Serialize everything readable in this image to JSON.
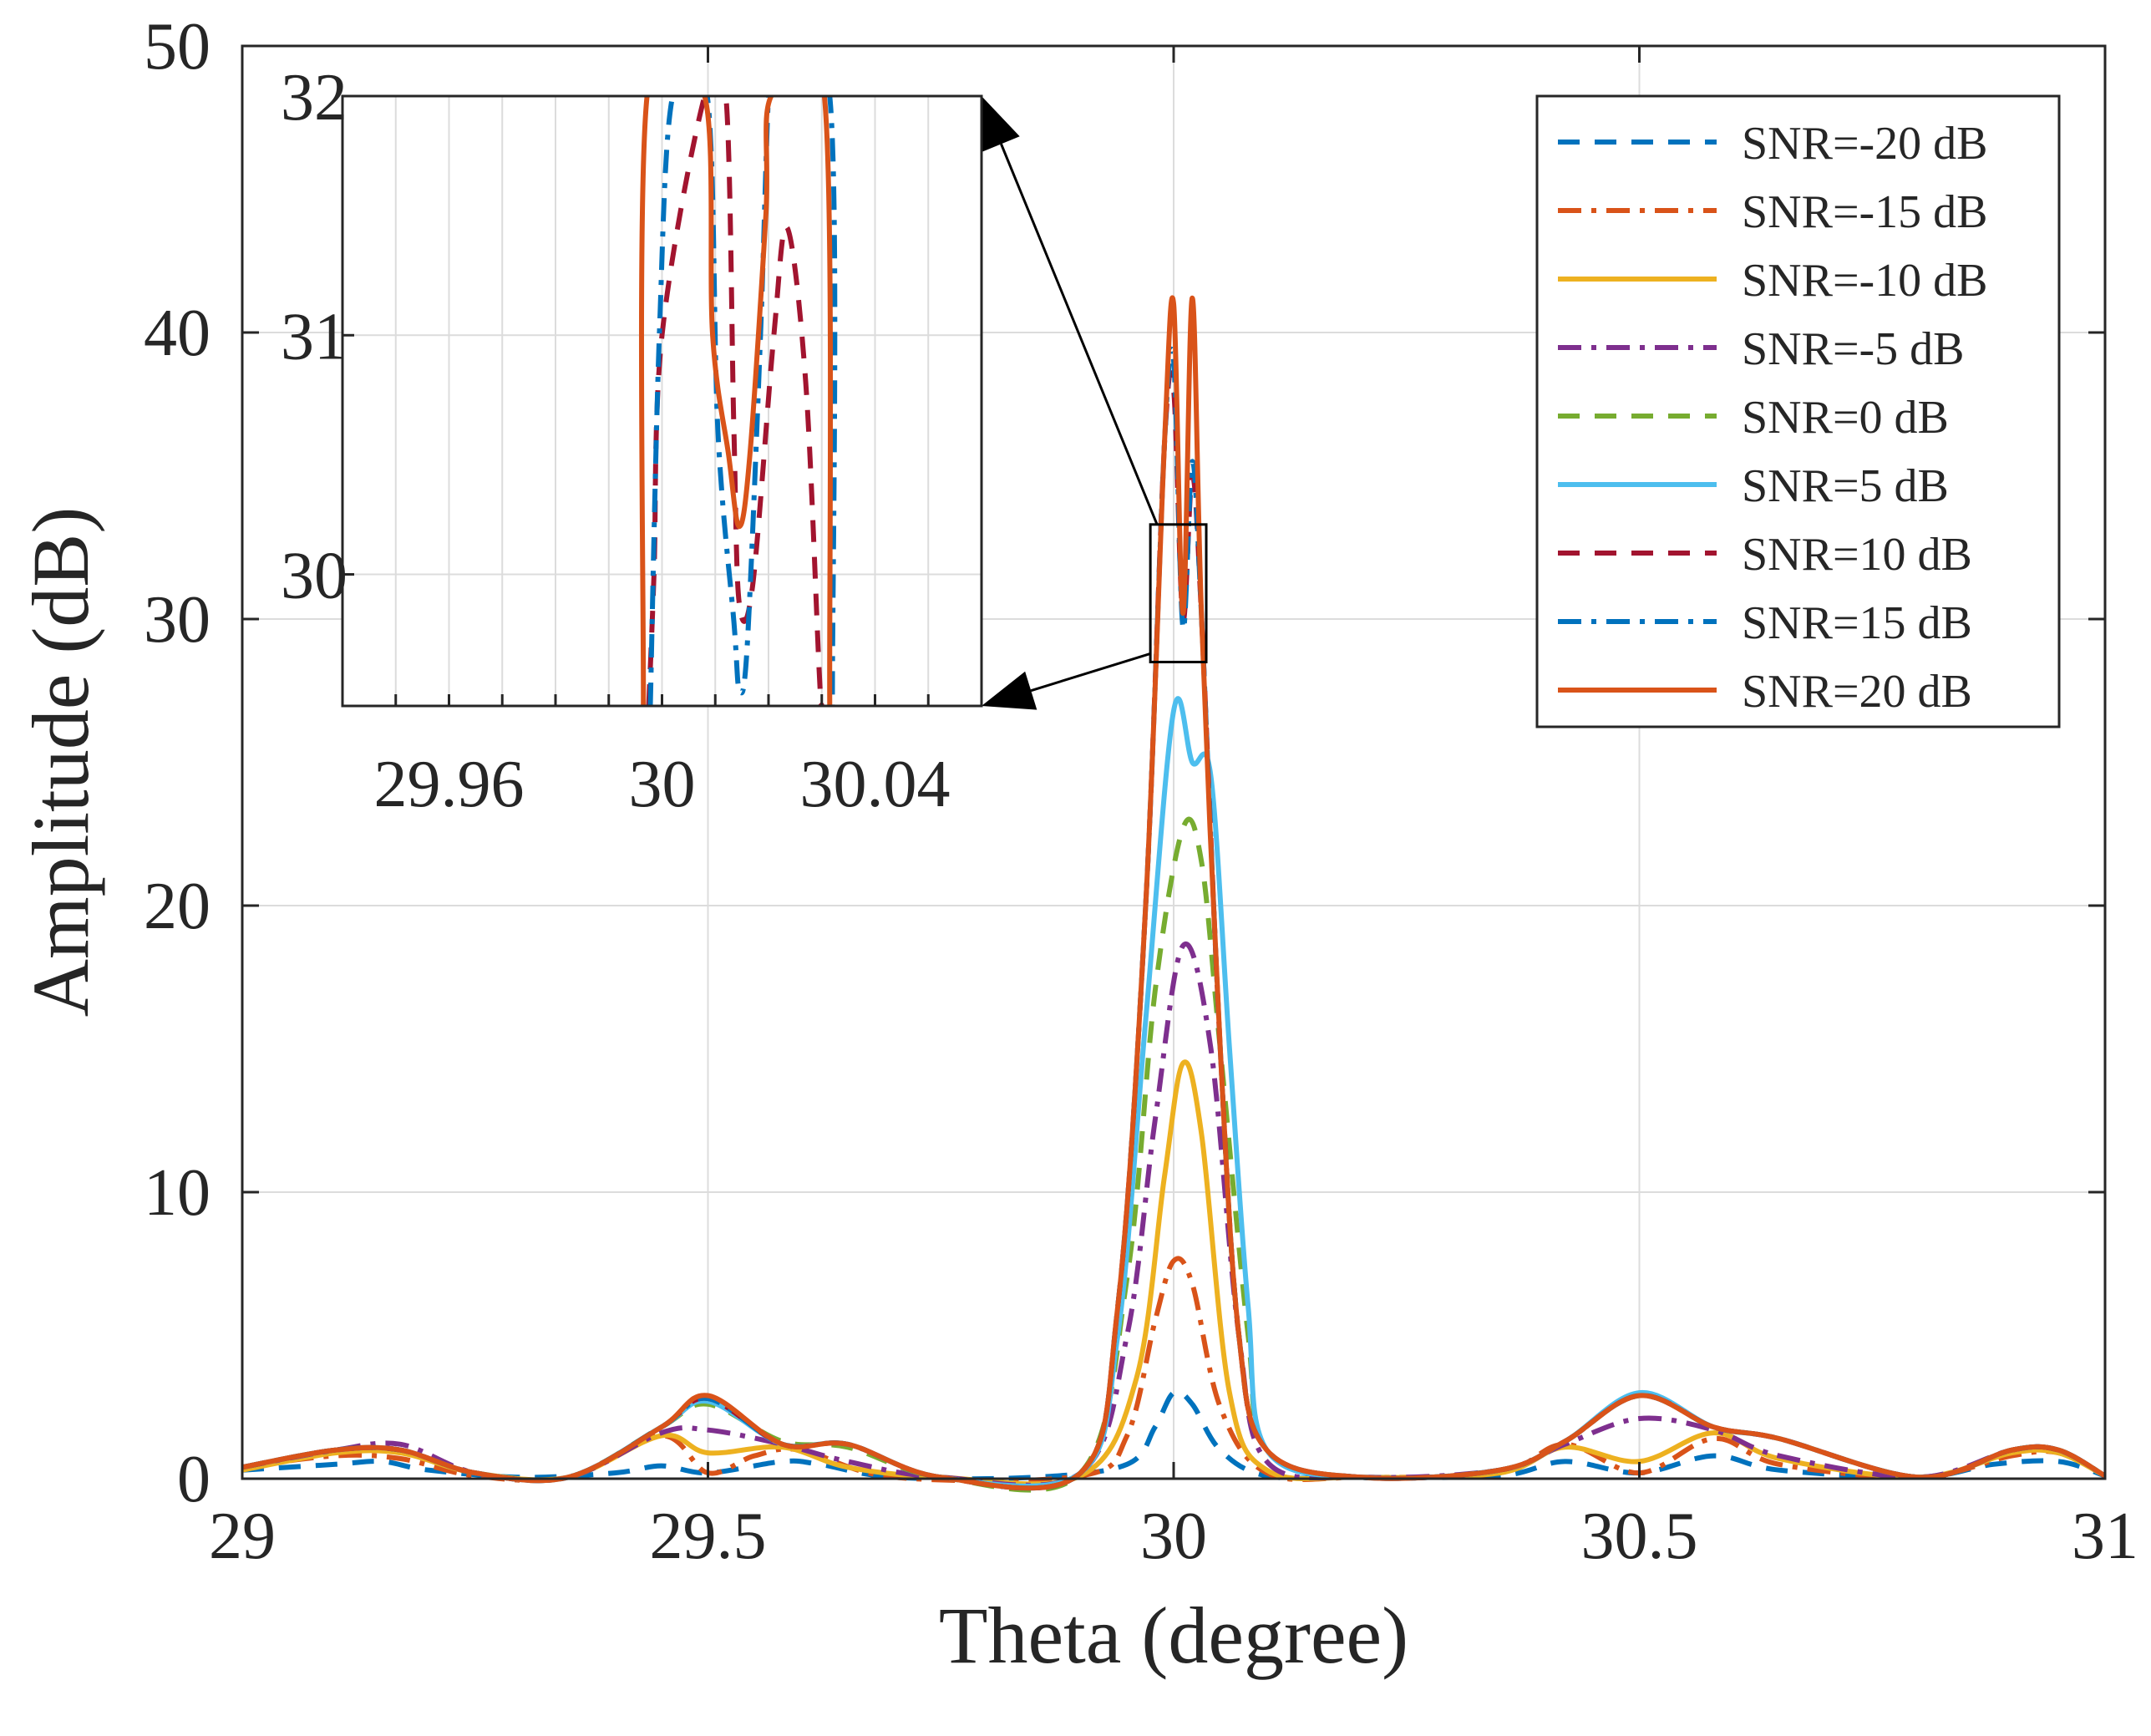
{
  "chart_data": {
    "type": "line",
    "xlabel": "Theta (degree)",
    "ylabel": "Amplitude (dB)",
    "xlim": [
      29,
      31
    ],
    "ylim": [
      0,
      50
    ],
    "xticks": [
      29,
      29.5,
      30,
      30.5,
      31
    ],
    "xtick_labels": [
      "29",
      "29.5",
      "30",
      "30.5",
      "31"
    ],
    "yticks": [
      0,
      10,
      20,
      30,
      40,
      50
    ],
    "ytick_labels": [
      "0",
      "10",
      "20",
      "30",
      "40",
      "50"
    ],
    "grid": true,
    "legend_position": "top-right",
    "series": [
      {
        "name": "SNR=-20 dB",
        "color": "#0072BD",
        "style": "dashed",
        "x": [
          29,
          29.1,
          29.15,
          29.2,
          29.3,
          29.4,
          29.45,
          29.5,
          29.58,
          29.62,
          29.7,
          29.85,
          29.95,
          29.98,
          30.0,
          30.02,
          30.05,
          30.1,
          30.2,
          30.35,
          30.42,
          30.5,
          30.58,
          30.65,
          30.8,
          30.88,
          30.95,
          31
        ],
        "y": [
          0.3,
          0.5,
          0.6,
          0.3,
          0.05,
          0.2,
          0.45,
          0.2,
          0.6,
          0.5,
          0.05,
          0.05,
          0.5,
          1.8,
          3.0,
          2.6,
          1.0,
          0.1,
          0.05,
          0.1,
          0.6,
          0.2,
          0.8,
          0.3,
          0.05,
          0.5,
          0.6,
          0.1
        ]
      },
      {
        "name": "SNR=-15 dB",
        "color": "#D95319",
        "style": "dashdot",
        "x": [
          29,
          29.1,
          29.17,
          29.25,
          29.35,
          29.45,
          29.5,
          29.55,
          29.6,
          29.7,
          29.9,
          29.95,
          29.98,
          30.0,
          30.02,
          30.05,
          30.1,
          30.2,
          30.35,
          30.42,
          30.5,
          30.58,
          30.65,
          30.8,
          30.9,
          30.95,
          31
        ],
        "y": [
          0.4,
          0.8,
          0.7,
          0.1,
          0.05,
          1.5,
          0.2,
          0.8,
          1.0,
          0.05,
          0.1,
          1.5,
          5.5,
          7.6,
          6.8,
          2.5,
          0.2,
          0.05,
          0.2,
          1.2,
          0.2,
          1.4,
          0.5,
          0.05,
          0.8,
          0.9,
          0.1
        ]
      },
      {
        "name": "SNR=-10 dB",
        "color": "#EDB120",
        "style": "solid",
        "x": [
          29,
          29.1,
          29.17,
          29.25,
          29.35,
          29.45,
          29.5,
          29.58,
          29.65,
          29.75,
          29.9,
          29.96,
          29.99,
          30.01,
          30.03,
          30.06,
          30.1,
          30.2,
          30.35,
          30.42,
          30.5,
          30.58,
          30.65,
          30.8,
          30.9,
          30.95,
          31
        ],
        "y": [
          0.3,
          0.9,
          0.9,
          0.2,
          0.05,
          1.5,
          0.9,
          1.1,
          0.4,
          0.05,
          0.1,
          3.5,
          10.5,
          14.5,
          12.0,
          3.0,
          0.3,
          0.05,
          0.2,
          1.1,
          0.6,
          1.6,
          0.7,
          0.05,
          0.9,
          0.9,
          0.1
        ]
      },
      {
        "name": "SNR=-5 dB",
        "color": "#7E2F8E",
        "style": "dashdot",
        "x": [
          29,
          29.1,
          29.17,
          29.25,
          29.35,
          29.45,
          29.5,
          29.58,
          29.65,
          29.75,
          29.9,
          29.95,
          29.98,
          30.01,
          30.04,
          30.07,
          30.1,
          30.2,
          30.35,
          30.42,
          30.5,
          30.58,
          30.65,
          30.8,
          30.9,
          30.95,
          31
        ],
        "y": [
          0.4,
          1.0,
          1.2,
          0.2,
          0.05,
          1.6,
          1.7,
          1.2,
          0.6,
          0.05,
          0.2,
          5.0,
          12.5,
          18.6,
          15.0,
          5.0,
          0.6,
          0.05,
          0.3,
          1.2,
          2.1,
          1.7,
          0.8,
          0.05,
          1.0,
          1.0,
          0.1
        ]
      },
      {
        "name": "SNR=0 dB",
        "color": "#77AC30",
        "style": "dashed",
        "x": [
          29,
          29.1,
          29.17,
          29.25,
          29.35,
          29.45,
          29.5,
          29.58,
          29.65,
          29.75,
          29.9,
          29.95,
          29.98,
          30.01,
          30.03,
          30.05,
          30.08,
          30.1,
          30.2,
          30.35,
          30.42,
          30.5,
          30.58,
          30.65,
          30.8,
          30.9,
          30.95,
          31
        ],
        "y": [
          0.4,
          1.0,
          1.0,
          0.2,
          0.05,
          1.8,
          2.6,
          1.3,
          1.1,
          0.05,
          0.2,
          7.0,
          17.0,
          22.7,
          21.5,
          15.0,
          5.0,
          1.0,
          0.05,
          0.3,
          1.3,
          2.9,
          1.8,
          1.4,
          0.05,
          1.0,
          1.0,
          0.1
        ]
      },
      {
        "name": "SNR=5 dB",
        "color": "#4DBEEE",
        "style": "solid",
        "x": [
          29,
          29.1,
          29.17,
          29.25,
          29.35,
          29.45,
          29.5,
          29.58,
          29.65,
          29.75,
          29.9,
          29.94,
          29.97,
          30.0,
          30.02,
          30.04,
          30.06,
          30.08,
          30.1,
          30.2,
          30.35,
          30.42,
          30.5,
          30.58,
          30.65,
          30.8,
          30.9,
          30.95,
          31
        ],
        "y": [
          0.4,
          1.0,
          1.0,
          0.2,
          0.05,
          1.8,
          2.7,
          1.2,
          1.2,
          0.05,
          0.2,
          5.0,
          16.0,
          26.8,
          25.0,
          24.5,
          15.0,
          6.0,
          1.0,
          0.05,
          0.3,
          1.3,
          3.0,
          1.8,
          1.4,
          0.05,
          1.0,
          1.0,
          0.1
        ]
      },
      {
        "name": "SNR=10 dB",
        "color": "#A2142F",
        "style": "dashed",
        "x": [
          29,
          29.1,
          29.17,
          29.25,
          29.35,
          29.45,
          29.5,
          29.58,
          29.65,
          29.75,
          29.9,
          29.94,
          29.97,
          29.99,
          30.0,
          30.01,
          30.02,
          30.03,
          30.05,
          30.07,
          30.1,
          30.2,
          30.35,
          30.42,
          30.5,
          30.58,
          30.65,
          30.8,
          30.9,
          30.95,
          31
        ],
        "y": [
          0.4,
          1.0,
          1.0,
          0.2,
          0.05,
          1.8,
          2.8,
          1.2,
          1.2,
          0.05,
          0.2,
          6.0,
          20.0,
          36.0,
          38.0,
          30.0,
          35.0,
          30.0,
          15.0,
          5.0,
          1.0,
          0.05,
          0.3,
          1.3,
          2.9,
          1.8,
          1.4,
          0.05,
          1.0,
          1.0,
          0.1
        ]
      },
      {
        "name": "SNR=15 dB",
        "color": "#0072BD",
        "style": "dashdot",
        "x": [
          29,
          29.1,
          29.17,
          29.25,
          29.35,
          29.45,
          29.5,
          29.58,
          29.65,
          29.75,
          29.9,
          29.94,
          29.97,
          29.99,
          30.0,
          30.01,
          30.02,
          30.03,
          30.05,
          30.07,
          30.1,
          30.2,
          30.35,
          30.42,
          30.5,
          30.58,
          30.65,
          30.8,
          30.9,
          30.95,
          31
        ],
        "y": [
          0.4,
          1.0,
          1.0,
          0.2,
          0.05,
          1.8,
          2.8,
          1.2,
          1.2,
          0.05,
          0.2,
          6.0,
          20.0,
          36.0,
          39.0,
          29.7,
          35.5,
          30.0,
          15.0,
          5.0,
          1.0,
          0.05,
          0.3,
          1.3,
          2.9,
          1.8,
          1.4,
          0.05,
          1.0,
          1.0,
          0.1
        ]
      },
      {
        "name": "SNR=20 dB",
        "color": "#D95319",
        "style": "solid",
        "x": [
          29,
          29.1,
          29.17,
          29.25,
          29.35,
          29.45,
          29.5,
          29.58,
          29.65,
          29.75,
          29.9,
          29.94,
          29.97,
          29.99,
          30.0,
          30.01,
          30.02,
          30.03,
          30.05,
          30.07,
          30.1,
          30.2,
          30.35,
          30.42,
          30.5,
          30.58,
          30.65,
          30.8,
          30.9,
          30.95,
          31
        ],
        "y": [
          0.4,
          1.0,
          1.0,
          0.2,
          0.05,
          1.8,
          2.9,
          1.2,
          1.2,
          0.05,
          0.2,
          6.0,
          20.0,
          36.0,
          41.0,
          30.2,
          41.2,
          30.0,
          15.0,
          5.0,
          1.0,
          0.05,
          0.3,
          1.3,
          2.9,
          1.8,
          1.4,
          0.05,
          1.0,
          1.0,
          0.1
        ]
      }
    ],
    "inset": {
      "xlim": [
        29.94,
        30.06
      ],
      "ylim": [
        29.45,
        32.0
      ],
      "xticks": [
        29.96,
        30,
        30.04
      ],
      "xtick_labels": [
        "29.96",
        "30",
        "30.04"
      ],
      "yticks": [
        30,
        31,
        32
      ],
      "ytick_labels": [
        "30",
        "31",
        "32"
      ],
      "zoom_box": {
        "x": [
          29.975,
          30.035
        ],
        "y": [
          28.5,
          33.3
        ]
      },
      "series": [
        {
          "name": "SNR=10 dB",
          "color": "#A2142F",
          "style": "dashed",
          "x": [
            29.9975,
            29.9985,
            30.0,
            30.008,
            30.012,
            30.0135,
            30.0145,
            30.017,
            30.021,
            30.0235,
            30.027,
            30.0295,
            30.03
          ],
          "y": [
            29.45,
            30.0,
            31.0,
            32.0,
            32.0,
            30.6,
            29.88,
            29.95,
            31.0,
            31.45,
            30.8,
            29.6,
            29.45
          ]
        },
        {
          "name": "SNR=15 dB",
          "color": "#0072BD",
          "style": "dashdot",
          "x": [
            29.9978,
            29.9995,
            30.002,
            30.0085,
            30.0105,
            30.0135,
            30.0145,
            30.016,
            30.0185,
            30.02,
            30.021,
            30.0315,
            30.032
          ],
          "y": [
            29.45,
            31.0,
            32.0,
            32.0,
            30.6,
            29.8,
            29.52,
            29.7,
            31.0,
            32.0,
            32.0,
            32.0,
            29.45
          ]
        },
        {
          "name": "SNR=20 dB",
          "color": "#D95319",
          "style": "solid",
          "x": [
            29.9965,
            29.9972,
            30.008,
            30.0095,
            30.0125,
            30.0145,
            30.0165,
            30.0195,
            30.0205,
            30.0305,
            30.0315
          ],
          "y": [
            29.45,
            32.0,
            32.0,
            31.0,
            30.5,
            30.2,
            30.5,
            31.5,
            32.0,
            32.0,
            29.45
          ]
        }
      ]
    }
  }
}
